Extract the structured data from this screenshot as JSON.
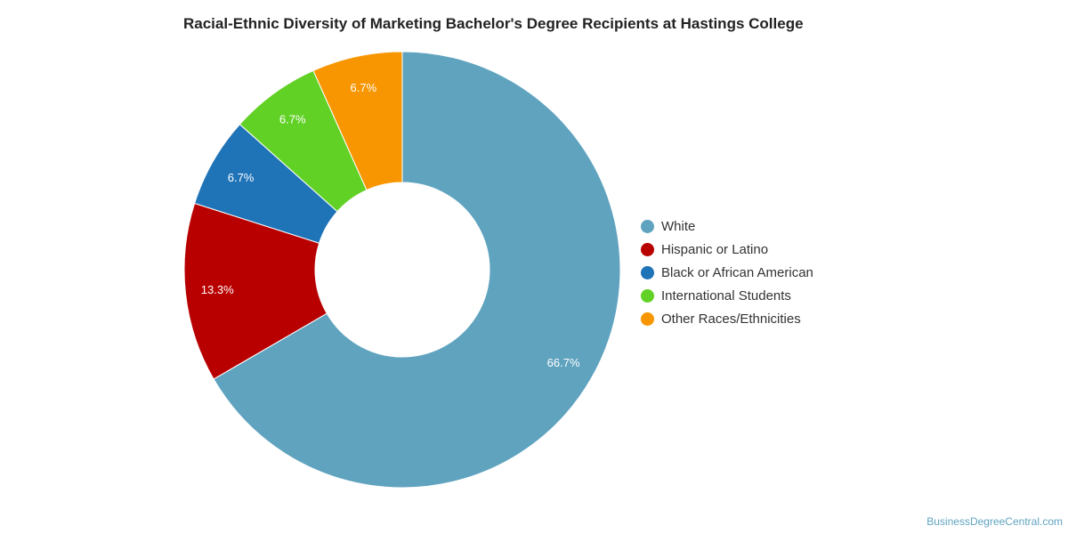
{
  "chart_data": {
    "type": "pie",
    "title": "Racial-Ethnic Diversity of Marketing Bachelor's Degree Recipients at Hastings College",
    "donut": true,
    "legend_position": "right",
    "categories": [
      "White",
      "Hispanic or Latino",
      "Black or African American",
      "International Students",
      "Other Races/Ethnicities"
    ],
    "values": [
      66.7,
      13.3,
      6.7,
      6.7,
      6.7
    ],
    "data_labels": [
      "66.7%",
      "13.3%",
      "6.7%",
      "6.7%",
      "6.7%"
    ],
    "colors": [
      "#5fa3bf",
      "#b80000",
      "#1f73b7",
      "#62d126",
      "#f79600"
    ]
  },
  "credit": "BusinessDegreeCentral.com"
}
